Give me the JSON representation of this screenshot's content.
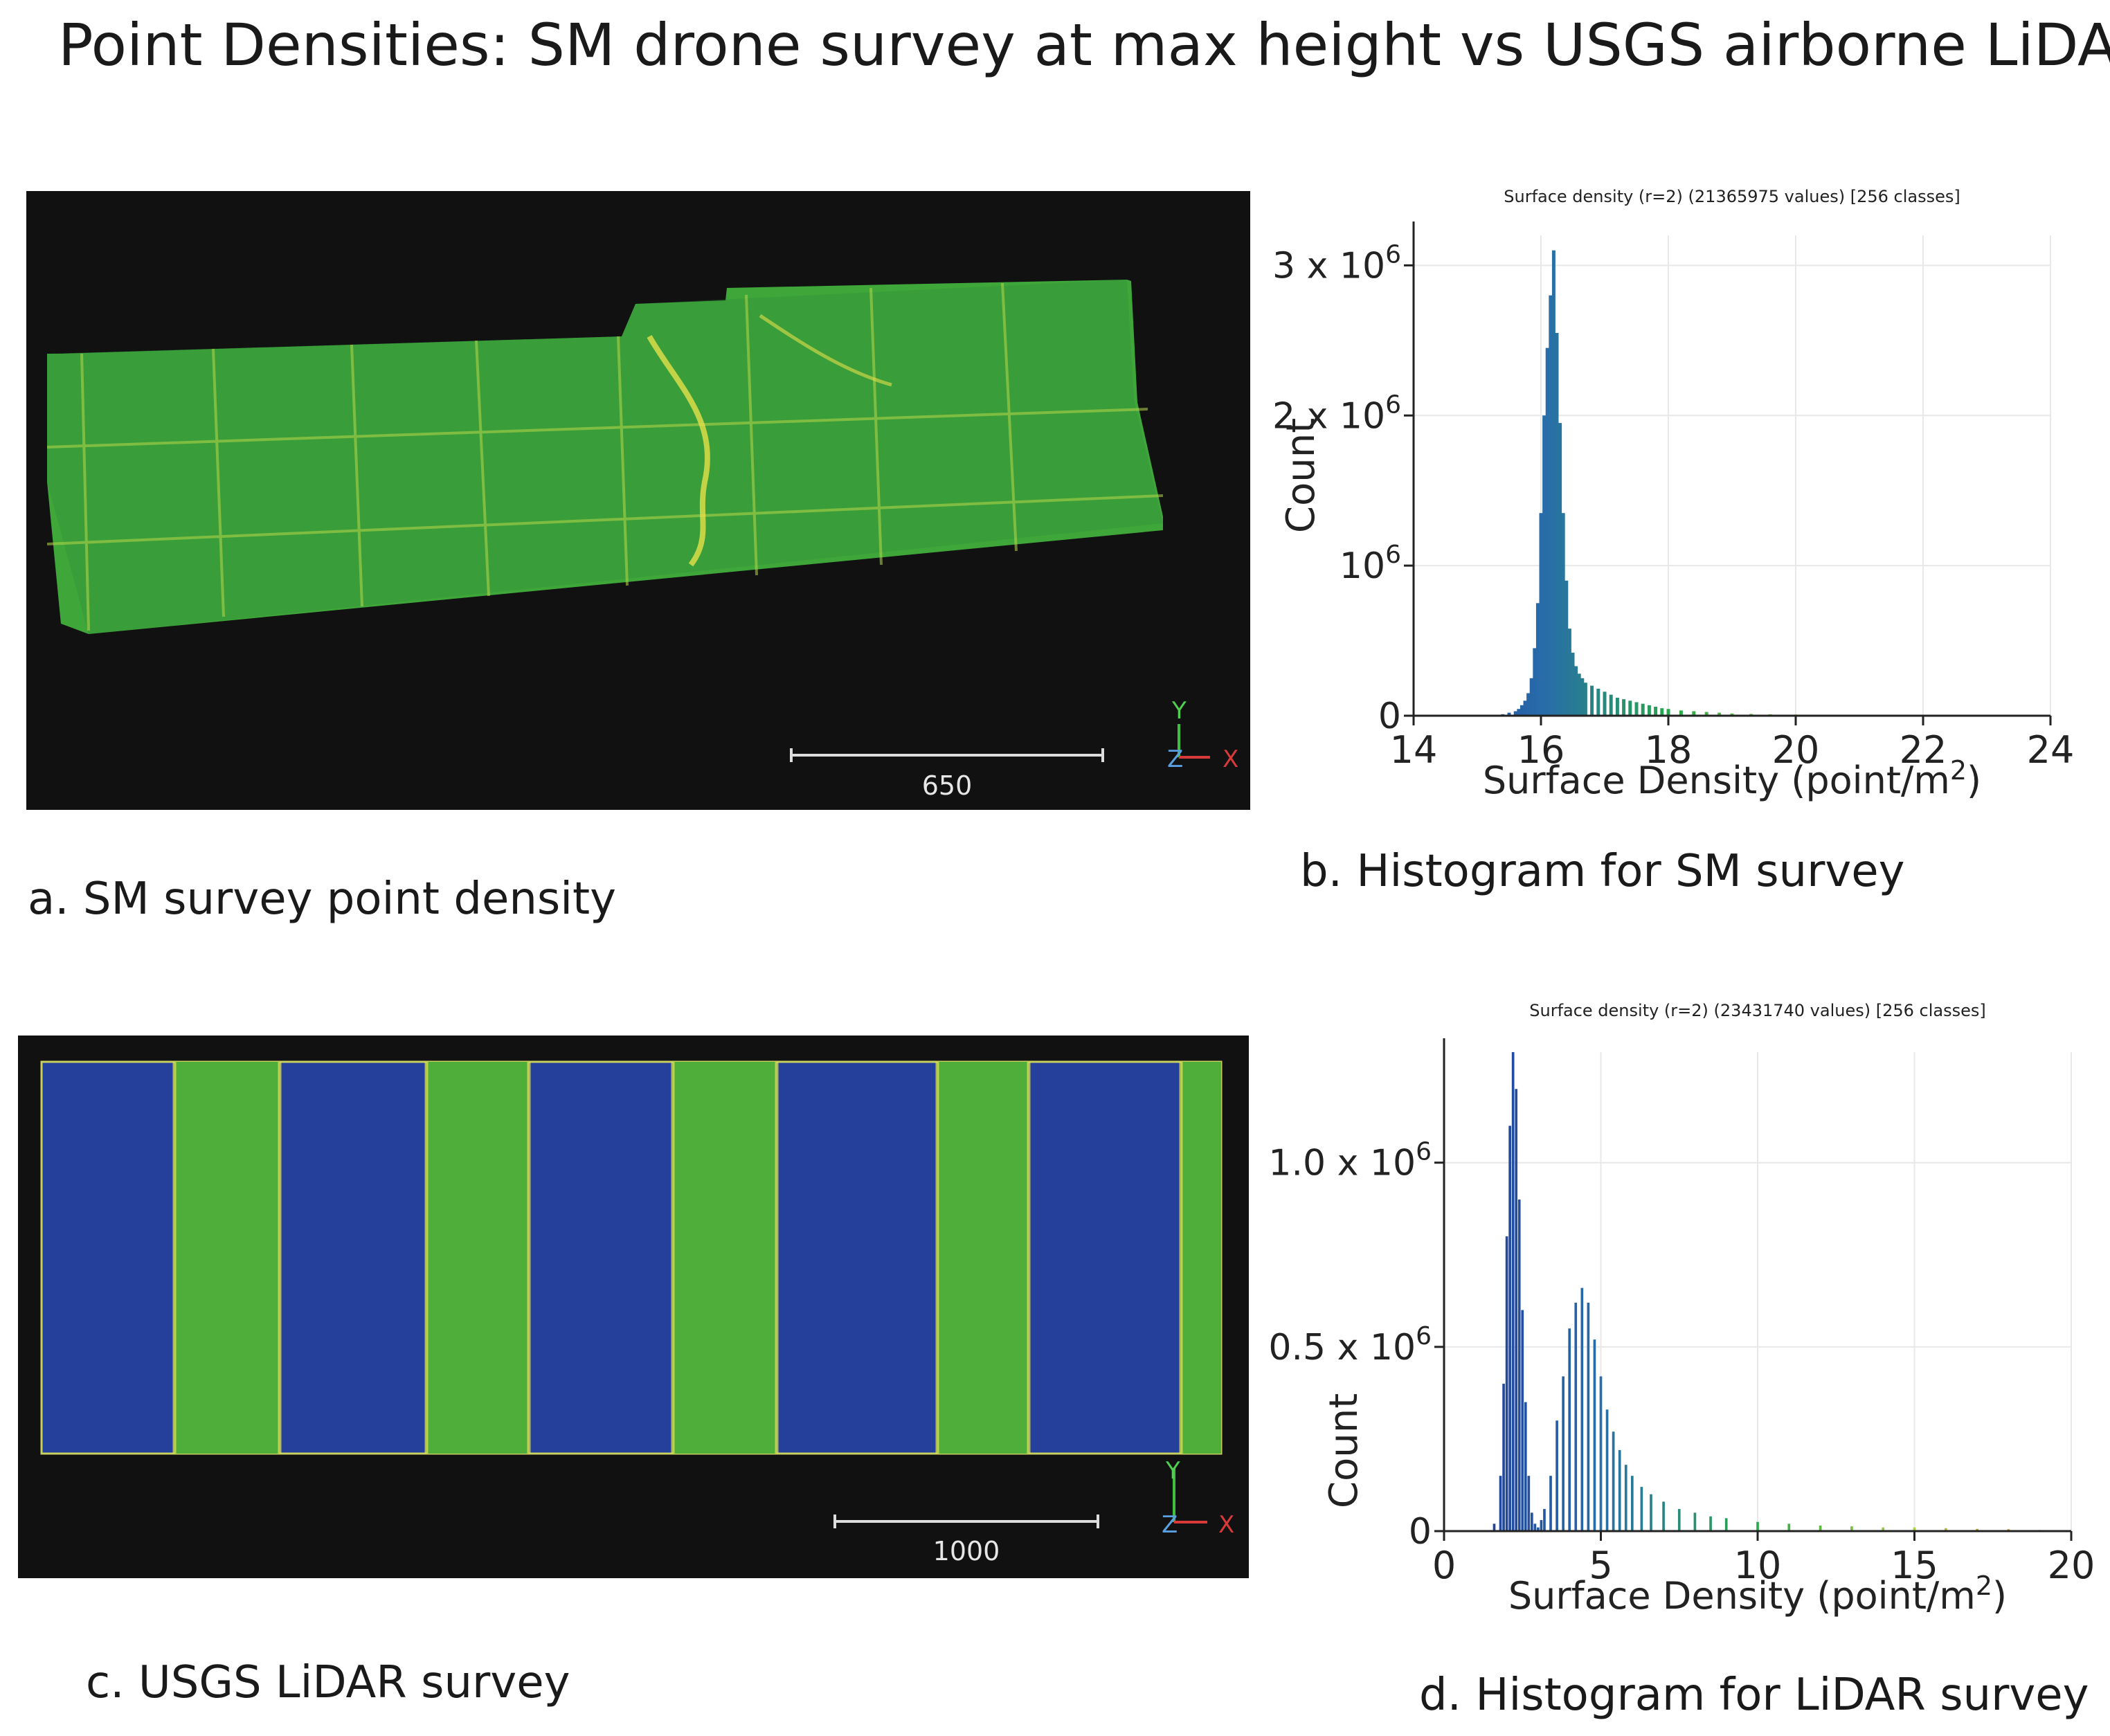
{
  "title": "Point Densities:  SM drone survey at max height vs USGS airborne LiDAR",
  "captions": {
    "a": "a.  SM survey point density",
    "b": "b. Histogram for SM survey",
    "c": "c. USGS LiDAR survey",
    "d": "d. Histogram for LiDAR survey"
  },
  "panel_a": {
    "scale_label": "650",
    "axis_y": "Y",
    "axis_z": "Z",
    "axis_x": "X",
    "color": "#3fa63a"
  },
  "panel_c": {
    "scale_label": "1000",
    "axis_y": "Y",
    "axis_z": "Z",
    "axis_x": "X",
    "stripe_color": "#4fae3a",
    "gap_color": "#24409a"
  },
  "chart_data": [
    {
      "type": "bar",
      "title": "Surface density (r=2) (21365975 values)  [256 classes]",
      "xlabel": "Surface Density (point/m",
      "xlabel_sup": "2",
      "xlabel_close": ")",
      "ylabel": "Count",
      "xlim": [
        14,
        24
      ],
      "ylim": [
        0,
        3.2
      ],
      "xticks": [
        "14",
        "16",
        "18",
        "20",
        "22",
        "24"
      ],
      "yticks": [
        {
          "base": "0",
          "sup": ""
        },
        {
          "base": "10",
          "sup": "6"
        },
        {
          "base": "2 x 10",
          "sup": "6"
        },
        {
          "base": "3 x 10",
          "sup": "6"
        }
      ],
      "x": [
        15.3,
        15.4,
        15.5,
        15.6,
        15.65,
        15.7,
        15.75,
        15.8,
        15.85,
        15.9,
        15.95,
        16.0,
        16.05,
        16.1,
        16.15,
        16.2,
        16.25,
        16.3,
        16.35,
        16.4,
        16.45,
        16.5,
        16.55,
        16.6,
        16.65,
        16.7,
        16.8,
        16.9,
        17.0,
        17.1,
        17.2,
        17.3,
        17.4,
        17.5,
        17.6,
        17.7,
        17.8,
        17.9,
        18.0,
        18.2,
        18.4,
        18.6,
        18.8,
        19.0,
        19.3,
        19.6,
        20.0,
        20.5,
        21.0
      ],
      "values": [
        0.005,
        0.01,
        0.02,
        0.03,
        0.045,
        0.07,
        0.1,
        0.15,
        0.25,
        0.45,
        0.75,
        1.35,
        2.0,
        2.45,
        2.8,
        3.1,
        2.55,
        1.95,
        1.35,
        0.9,
        0.58,
        0.42,
        0.33,
        0.28,
        0.25,
        0.22,
        0.2,
        0.18,
        0.16,
        0.14,
        0.12,
        0.11,
        0.1,
        0.09,
        0.08,
        0.07,
        0.06,
        0.05,
        0.045,
        0.035,
        0.03,
        0.025,
        0.02,
        0.015,
        0.012,
        0.01,
        0.008,
        0.005,
        0.003
      ],
      "units": "millions"
    },
    {
      "type": "bar",
      "title": "Surface density (r=2) (23431740 values)  [256 classes]",
      "xlabel": "Surface Density (point/m",
      "xlabel_sup": "2",
      "xlabel_close": ")",
      "ylabel": "Count",
      "xlim": [
        0,
        20
      ],
      "ylim": [
        0,
        1.3
      ],
      "xticks": [
        "0",
        "5",
        "10",
        "15",
        "20"
      ],
      "yticks": [
        {
          "base": "0",
          "sup": ""
        },
        {
          "base": "0.5 x 10",
          "sup": "6"
        },
        {
          "base": "1.0 x 10",
          "sup": "6"
        }
      ],
      "x": [
        1.6,
        1.8,
        1.9,
        2.0,
        2.1,
        2.2,
        2.3,
        2.4,
        2.5,
        2.6,
        2.7,
        2.8,
        2.9,
        3.0,
        3.1,
        3.2,
        3.4,
        3.6,
        3.8,
        4.0,
        4.2,
        4.4,
        4.6,
        4.8,
        5.0,
        5.2,
        5.4,
        5.6,
        5.8,
        6.0,
        6.3,
        6.6,
        7.0,
        7.5,
        8.0,
        8.5,
        9.0,
        10.0,
        11.0,
        12.0,
        13.0,
        14.0,
        15.0,
        16.0,
        17.0,
        18.0,
        19.0
      ],
      "values": [
        0.02,
        0.15,
        0.4,
        0.8,
        1.1,
        1.3,
        1.2,
        0.9,
        0.6,
        0.35,
        0.15,
        0.05,
        0.02,
        0.01,
        0.03,
        0.06,
        0.15,
        0.3,
        0.42,
        0.55,
        0.62,
        0.66,
        0.62,
        0.52,
        0.42,
        0.33,
        0.27,
        0.22,
        0.18,
        0.15,
        0.12,
        0.1,
        0.08,
        0.06,
        0.05,
        0.04,
        0.035,
        0.025,
        0.02,
        0.015,
        0.013,
        0.01,
        0.01,
        0.008,
        0.006,
        0.005,
        0.003
      ],
      "units": "millions"
    }
  ]
}
